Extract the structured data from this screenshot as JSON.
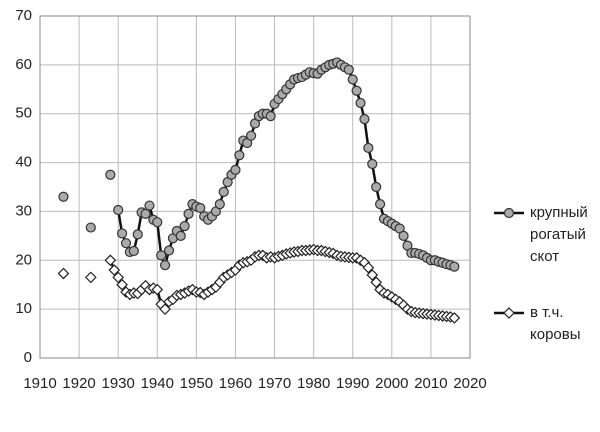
{
  "chart_data": {
    "type": "line",
    "x": [
      1916,
      1917,
      1918,
      1919,
      1920,
      1921,
      1922,
      1923,
      1924,
      1925,
      1926,
      1927,
      1928,
      1929,
      1930,
      1931,
      1932,
      1933,
      1934,
      1935,
      1936,
      1937,
      1938,
      1939,
      1940,
      1941,
      1942,
      1943,
      1944,
      1945,
      1946,
      1947,
      1948,
      1949,
      1950,
      1951,
      1952,
      1953,
      1954,
      1955,
      1956,
      1957,
      1958,
      1959,
      1960,
      1961,
      1962,
      1963,
      1964,
      1965,
      1966,
      1967,
      1968,
      1969,
      1970,
      1971,
      1972,
      1973,
      1974,
      1975,
      1976,
      1977,
      1978,
      1979,
      1980,
      1981,
      1982,
      1983,
      1984,
      1985,
      1986,
      1987,
      1988,
      1989,
      1990,
      1991,
      1992,
      1993,
      1994,
      1995,
      1996,
      1997,
      1998,
      1999,
      2000,
      2001,
      2002,
      2003,
      2004,
      2005,
      2006,
      2007,
      2008,
      2009,
      2010,
      2011,
      2012,
      2013,
      2014,
      2015,
      2016
    ],
    "series": [
      {
        "name": "крупный рогатый скот",
        "color": "#aaaaaa",
        "marker": "circle",
        "values": [
          33,
          null,
          null,
          null,
          null,
          null,
          null,
          26.7,
          null,
          null,
          null,
          null,
          37.5,
          null,
          30.3,
          25.5,
          23.5,
          21.7,
          21.9,
          25.3,
          29.8,
          29.5,
          31.2,
          28.3,
          27.8,
          21,
          19,
          22,
          24.5,
          26,
          25,
          27,
          29.5,
          31.5,
          31,
          30.7,
          29,
          28.3,
          29,
          30,
          31.5,
          34,
          36,
          37.5,
          38.5,
          41.5,
          44.5,
          44,
          45.5,
          48,
          49.5,
          50,
          50,
          49.5,
          52,
          53,
          54,
          55,
          56,
          57,
          57.3,
          57.5,
          58,
          58.5,
          58.3,
          58.2,
          59,
          59.5,
          60,
          60.2,
          60.5,
          60,
          59.5,
          59,
          57,
          54.7,
          52.2,
          48.9,
          43,
          39.7,
          35,
          31.5,
          28.5,
          28,
          27.5,
          27,
          26.5,
          25,
          23,
          21.5,
          21.5,
          21.3,
          21,
          20.5,
          20,
          20,
          19.7,
          19.5,
          19.2,
          19,
          18.7
        ]
      },
      {
        "name": "в т.ч. коровы",
        "color": "#ffffff",
        "marker": "diamond",
        "values": [
          17.3,
          null,
          null,
          null,
          null,
          null,
          null,
          16.5,
          null,
          null,
          null,
          null,
          20,
          18,
          16.5,
          15,
          13.5,
          13,
          13.3,
          13.2,
          14,
          14.8,
          14,
          14.3,
          14,
          11,
          10,
          11.5,
          12,
          12.8,
          13,
          13.3,
          13.7,
          14,
          13.5,
          13.4,
          13,
          13.5,
          14,
          14.5,
          15.5,
          16.5,
          17,
          17.5,
          18,
          19,
          19.5,
          19.7,
          20,
          20.7,
          21,
          21,
          20.5,
          20.7,
          20.5,
          20.8,
          21,
          21.3,
          21.5,
          21.7,
          21.8,
          22,
          22,
          22.1,
          22.2,
          22,
          22,
          21.8,
          21.6,
          21.4,
          21,
          20.8,
          20.7,
          20.6,
          20.5,
          20.5,
          20,
          19.5,
          18.5,
          17,
          15.5,
          14,
          13.3,
          13,
          12.5,
          12,
          11.5,
          10.8,
          10,
          9.5,
          9.3,
          9.2,
          9.1,
          9,
          8.9,
          8.8,
          8.7,
          8.6,
          8.5,
          8.4,
          8.2
        ]
      }
    ],
    "xlim": [
      1910,
      2020
    ],
    "xticks": [
      1910,
      1920,
      1930,
      1940,
      1950,
      1960,
      1970,
      1980,
      1990,
      2000,
      2010,
      2020
    ],
    "ylim": [
      0,
      70
    ],
    "yticks": [
      0,
      10,
      20,
      30,
      40,
      50,
      60,
      70
    ],
    "grid": true,
    "legend": "right"
  }
}
